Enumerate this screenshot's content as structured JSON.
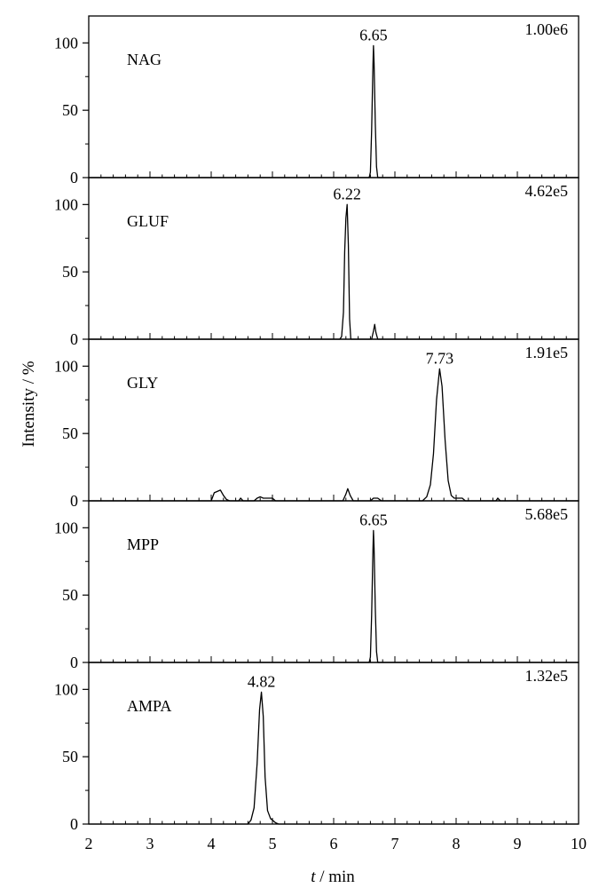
{
  "chart_data": {
    "type": "line",
    "xlabel_italic": "t",
    "xlabel_rest": " / min",
    "ylabel": "Intensity / %",
    "xlim": [
      2,
      10
    ],
    "ylim": [
      0,
      120
    ],
    "x_ticks": [
      "2",
      "3",
      "4",
      "5",
      "6",
      "7",
      "8",
      "9",
      "10"
    ],
    "y_ticks": [
      "0",
      "50",
      "100"
    ],
    "grid": false,
    "line_color": "#000000",
    "panels": [
      {
        "name": "NAG",
        "scale": "1.00e6",
        "peak_label": "6.65",
        "peak_time": 6.65,
        "points": [
          [
            2,
            0
          ],
          [
            6.5,
            0
          ],
          [
            6.58,
            0
          ],
          [
            6.6,
            4
          ],
          [
            6.62,
            35
          ],
          [
            6.64,
            80
          ],
          [
            6.65,
            98
          ],
          [
            6.66,
            85
          ],
          [
            6.68,
            40
          ],
          [
            6.7,
            8
          ],
          [
            6.72,
            0
          ],
          [
            10,
            0
          ]
        ]
      },
      {
        "name": "GLUF",
        "scale": "4.62e5",
        "peak_label": "6.22",
        "peak_time": 6.22,
        "points": [
          [
            2,
            0
          ],
          [
            6.1,
            0
          ],
          [
            6.13,
            2
          ],
          [
            6.16,
            20
          ],
          [
            6.18,
            65
          ],
          [
            6.2,
            90
          ],
          [
            6.22,
            100
          ],
          [
            6.24,
            70
          ],
          [
            6.26,
            15
          ],
          [
            6.28,
            0
          ],
          [
            6.62,
            0
          ],
          [
            6.65,
            6
          ],
          [
            6.67,
            11
          ],
          [
            6.69,
            5
          ],
          [
            6.72,
            0
          ],
          [
            10,
            0
          ]
        ]
      },
      {
        "name": "GLY",
        "scale": "1.91e5",
        "peak_label": "7.73",
        "peak_time": 7.73,
        "points": [
          [
            2,
            0
          ],
          [
            4.0,
            0
          ],
          [
            4.05,
            6
          ],
          [
            4.1,
            7
          ],
          [
            4.15,
            8
          ],
          [
            4.2,
            4
          ],
          [
            4.25,
            1
          ],
          [
            4.3,
            0
          ],
          [
            4.45,
            0
          ],
          [
            4.48,
            2
          ],
          [
            4.52,
            0
          ],
          [
            4.7,
            0
          ],
          [
            4.75,
            2
          ],
          [
            4.8,
            3
          ],
          [
            4.85,
            2
          ],
          [
            5.0,
            2
          ],
          [
            5.05,
            0
          ],
          [
            6.15,
            0
          ],
          [
            6.2,
            5
          ],
          [
            6.23,
            9
          ],
          [
            6.27,
            4
          ],
          [
            6.32,
            0
          ],
          [
            6.6,
            0
          ],
          [
            6.65,
            2
          ],
          [
            6.72,
            2
          ],
          [
            6.78,
            0
          ],
          [
            7.45,
            0
          ],
          [
            7.52,
            3
          ],
          [
            7.58,
            12
          ],
          [
            7.63,
            35
          ],
          [
            7.68,
            75
          ],
          [
            7.73,
            98
          ],
          [
            7.77,
            85
          ],
          [
            7.82,
            45
          ],
          [
            7.87,
            15
          ],
          [
            7.92,
            4
          ],
          [
            7.97,
            2
          ],
          [
            8.1,
            2
          ],
          [
            8.15,
            0
          ],
          [
            8.65,
            0
          ],
          [
            8.68,
            2
          ],
          [
            8.72,
            0
          ],
          [
            10,
            0
          ]
        ]
      },
      {
        "name": "MPP",
        "scale": "5.68e5",
        "peak_label": "6.65",
        "peak_time": 6.65,
        "points": [
          [
            2,
            0
          ],
          [
            6.58,
            0
          ],
          [
            6.6,
            4
          ],
          [
            6.62,
            35
          ],
          [
            6.64,
            80
          ],
          [
            6.65,
            98
          ],
          [
            6.66,
            85
          ],
          [
            6.68,
            40
          ],
          [
            6.7,
            8
          ],
          [
            6.72,
            0
          ],
          [
            10,
            0
          ]
        ]
      },
      {
        "name": "AMPA",
        "scale": "1.32e5",
        "peak_label": "4.82",
        "peak_time": 4.82,
        "points": [
          [
            2,
            0
          ],
          [
            4.6,
            0
          ],
          [
            4.65,
            3
          ],
          [
            4.7,
            12
          ],
          [
            4.75,
            45
          ],
          [
            4.79,
            85
          ],
          [
            4.82,
            98
          ],
          [
            4.85,
            80
          ],
          [
            4.88,
            35
          ],
          [
            4.92,
            10
          ],
          [
            4.97,
            4
          ],
          [
            5.0,
            3
          ],
          [
            5.05,
            1
          ],
          [
            5.1,
            0
          ],
          [
            10,
            0
          ]
        ]
      }
    ]
  }
}
